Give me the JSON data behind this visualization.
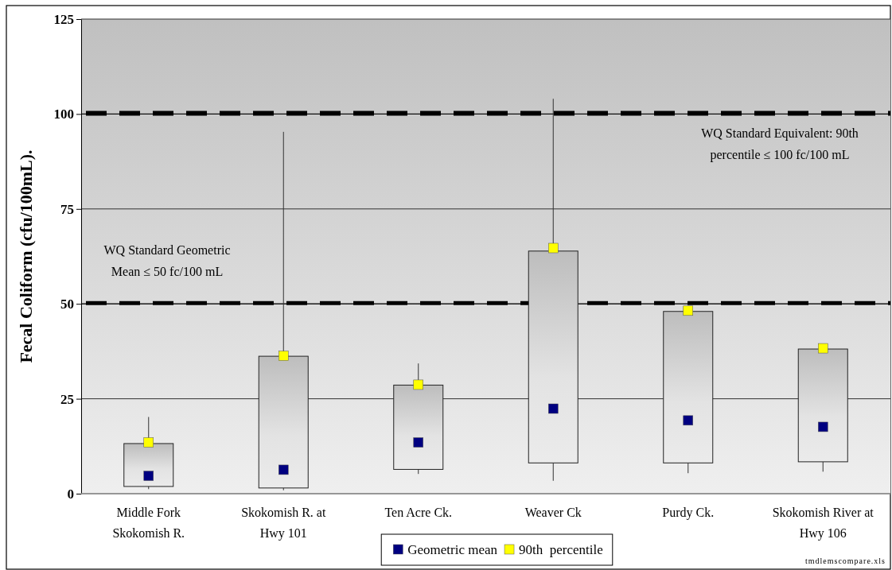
{
  "chart_data": {
    "type": "candlestick",
    "categories": [
      "Middle Fork Skokomish R.",
      "Skokomish R. at Hwy 101",
      "Ten Acre Ck.",
      "Weaver Ck",
      "Purdy Ck.",
      "Skokomish River at Hwy 106"
    ],
    "ylabel": "Fecal Coliform (cfu/100mL).",
    "ylim": [
      0,
      125
    ],
    "yticks": [
      0,
      25,
      50,
      75,
      100,
      125
    ],
    "grid": "y",
    "ohlc": [
      [
        1.9,
        20.2,
        1.2,
        13.2
      ],
      [
        1.5,
        95.3,
        0.9,
        36.2
      ],
      [
        6.4,
        34.3,
        5.2,
        28.6
      ],
      [
        8.1,
        104,
        3.4,
        63.9
      ],
      [
        8.1,
        48.0,
        5.4,
        48.0
      ],
      [
        8.4,
        38.1,
        5.8,
        38.1
      ]
    ],
    "series": [
      {
        "name": "Geometric mean",
        "type": "scatter",
        "color": "#000080",
        "x": [
          "Middle Fork Skokomish R.",
          "Skokomish R. at Hwy 101",
          "Ten Acre Ck.",
          "Weaver Ck",
          "Purdy Ck.",
          "Skokomish River at Hwy 106"
        ],
        "values": [
          4.7,
          6.3,
          13.5,
          22.4,
          19.3,
          17.6
        ]
      },
      {
        "name": "90th  percentile",
        "type": "scatter",
        "color": "#ffff00",
        "x": [
          "Middle Fork Skokomish R.",
          "Skokomish R. at Hwy 101",
          "Ten Acre Ck.",
          "Weaver Ck",
          "Purdy Ck.",
          "Skokomish River at Hwy 106"
        ],
        "values": [
          13.5,
          36.3,
          28.7,
          64.7,
          48.2,
          38.3
        ]
      }
    ],
    "marker": "square",
    "legend": "bottom",
    "ref_lines": [
      {
        "axis": "y",
        "value": 100,
        "label": "WQ Standard Equivalent: 90th percentile ≤ 100 fc/100 mL",
        "color": "#000000",
        "line_style": "dashed"
      },
      {
        "axis": "y",
        "value": 50,
        "label": "WQ Standard Geometric Mean ≤ 50 fc/100 mL",
        "color": "#000000",
        "line_style": "dashed"
      }
    ],
    "annotations": [
      "tmdlemscompare.xls"
    ]
  }
}
